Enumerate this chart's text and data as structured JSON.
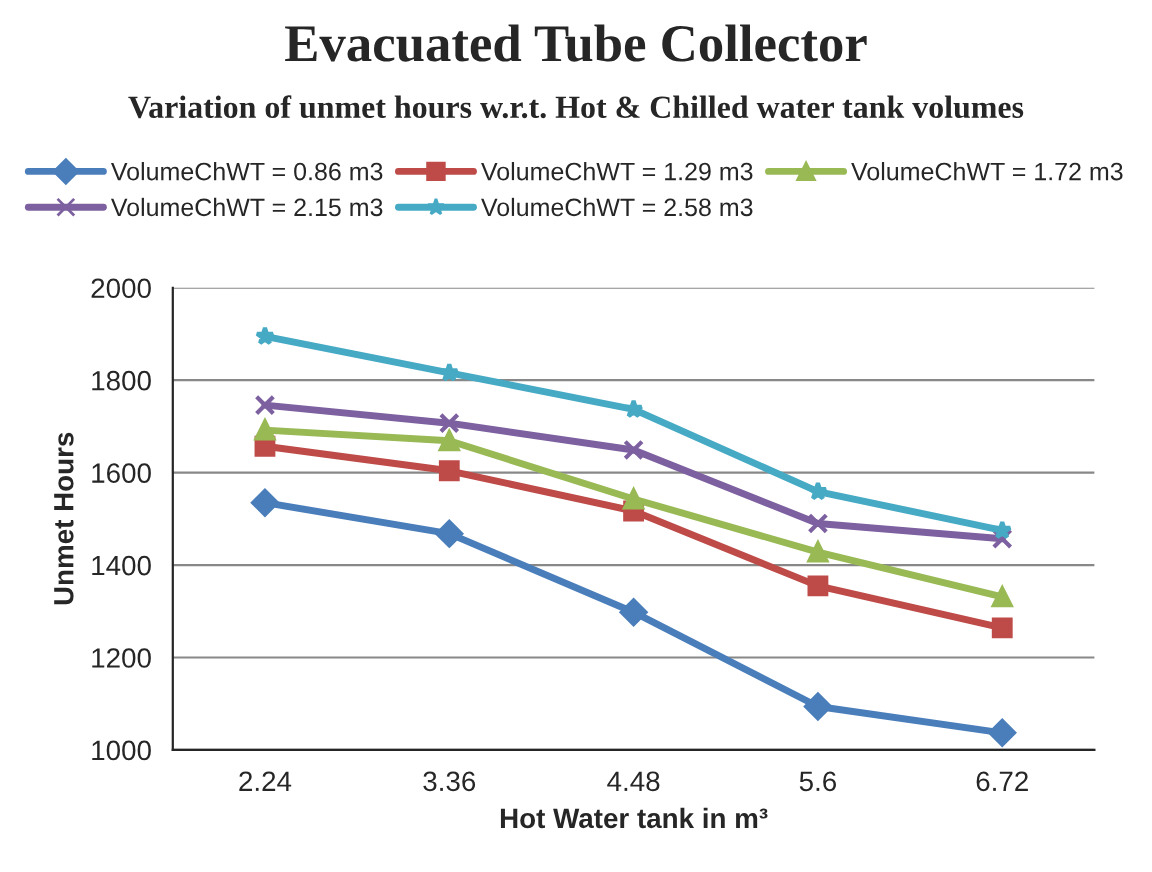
{
  "chart_data": {
    "type": "line",
    "title": "Evacuated Tube Collector",
    "subtitle": "Variation of unmet hours w.r.t. Hot & Chilled water tank volumes",
    "xlabel": "Hot Water tank in m³",
    "ylabel": "Unmet Hours",
    "categories": [
      "2.24",
      "3.36",
      "4.48",
      "5.6",
      "6.72"
    ],
    "series": [
      {
        "name": "VolumeChWT = 0.86 m3",
        "color": "#4a7ebb",
        "marker": "diamond",
        "values": [
          1535,
          1468,
          1298,
          1094,
          1037
        ]
      },
      {
        "name": "VolumeChWT = 1.29 m3",
        "color": "#be4b48",
        "marker": "square",
        "values": [
          1657,
          1604,
          1517,
          1355,
          1264
        ]
      },
      {
        "name": "VolumeChWT = 1.72 m3",
        "color": "#98b954",
        "marker": "triangle",
        "values": [
          1692,
          1669,
          1543,
          1428,
          1331
        ]
      },
      {
        "name": "VolumeChWT = 2.15 m3",
        "color": "#7d60a0",
        "marker": "cross",
        "values": [
          1746,
          1707,
          1649,
          1490,
          1457
        ]
      },
      {
        "name": "VolumeChWT = 2.58 m3",
        "color": "#46aac5",
        "marker": "star",
        "values": [
          1895,
          1816,
          1737,
          1559,
          1475
        ]
      }
    ],
    "ylim": [
      1000,
      2000
    ],
    "yticks": [
      1000,
      1200,
      1400,
      1600,
      1800,
      2000
    ],
    "grid": "y",
    "legend": "top",
    "line_style": "solid"
  }
}
